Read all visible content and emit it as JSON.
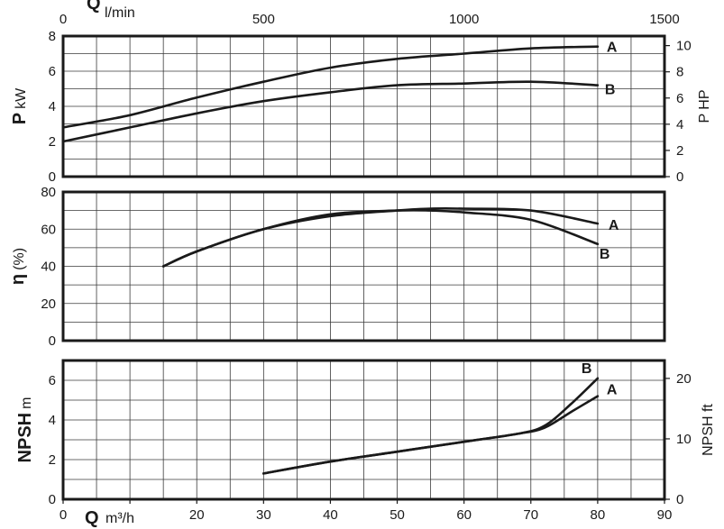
{
  "chart_data": [
    {
      "type": "line",
      "name": "power",
      "ylabel": "P",
      "yunit": "kW",
      "ylabel_right": "P HP",
      "xlim": [
        0,
        90
      ],
      "ylim": [
        0,
        8
      ],
      "ylim_right": [
        0,
        10.73
      ],
      "yticks": [
        0,
        2,
        4,
        6,
        8
      ],
      "yticks_right": [
        0,
        2,
        4,
        6,
        8,
        10
      ],
      "top_axis": {
        "label": "Q",
        "unit": "l/min",
        "ticks": [
          0,
          500,
          1000,
          1500
        ],
        "lim": [
          0,
          1500
        ]
      },
      "grid": true,
      "series": [
        {
          "name": "A",
          "x": [
            0,
            10,
            20,
            30,
            40,
            50,
            60,
            70,
            80
          ],
          "y": [
            2.8,
            3.5,
            4.5,
            5.4,
            6.2,
            6.7,
            7.0,
            7.3,
            7.4
          ]
        },
        {
          "name": "B",
          "x": [
            0,
            10,
            20,
            30,
            40,
            50,
            60,
            70,
            80
          ],
          "y": [
            2.0,
            2.8,
            3.6,
            4.3,
            4.8,
            5.2,
            5.3,
            5.4,
            5.2
          ]
        }
      ]
    },
    {
      "type": "line",
      "name": "efficiency",
      "ylabel": "η",
      "yunit": "(%)",
      "xlim": [
        0,
        90
      ],
      "ylim": [
        0,
        80
      ],
      "yticks": [
        0,
        20,
        40,
        60,
        80
      ],
      "grid": true,
      "series": [
        {
          "name": "A",
          "x": [
            15,
            20,
            30,
            40,
            50,
            55,
            60,
            70,
            80
          ],
          "y": [
            40,
            48,
            60,
            67,
            70,
            71,
            71,
            70,
            63
          ]
        },
        {
          "name": "B",
          "x": [
            15,
            20,
            30,
            40,
            50,
            55,
            60,
            70,
            80
          ],
          "y": [
            40,
            48,
            60,
            68,
            70,
            70,
            69,
            65,
            52
          ]
        }
      ]
    },
    {
      "type": "line",
      "name": "npsh",
      "ylabel": "NPSH",
      "yunit": "m",
      "ylabel_right": "NPSH ft",
      "xlim": [
        0,
        90
      ],
      "ylim": [
        0,
        7
      ],
      "ylim_right": [
        0,
        22.97
      ],
      "yticks": [
        0,
        2,
        4,
        6
      ],
      "yticks_right": [
        0,
        10,
        20
      ],
      "xlabel": "Q",
      "xunit": "m³/h",
      "xticks": [
        0,
        10,
        20,
        30,
        40,
        50,
        60,
        70,
        80,
        90
      ],
      "grid": true,
      "series": [
        {
          "name": "A",
          "x": [
            30,
            40,
            50,
            60,
            68,
            72,
            76,
            80
          ],
          "y": [
            1.3,
            1.9,
            2.4,
            2.9,
            3.3,
            3.6,
            4.4,
            5.2
          ]
        },
        {
          "name": "B",
          "x": [
            30,
            40,
            50,
            60,
            68,
            72,
            76,
            80
          ],
          "y": [
            1.3,
            1.9,
            2.4,
            2.9,
            3.3,
            3.7,
            4.8,
            6.1
          ]
        }
      ]
    }
  ]
}
